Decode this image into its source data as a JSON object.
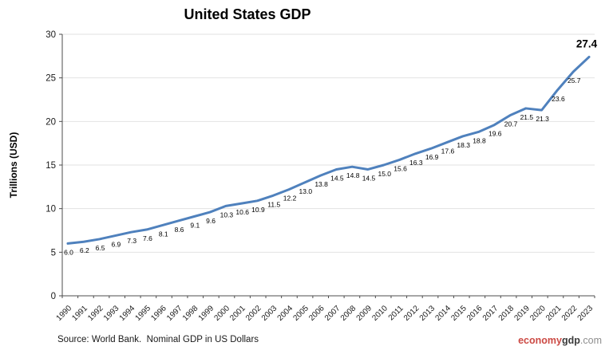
{
  "chart_data": {
    "type": "line",
    "title": "United States GDP",
    "xlabel": "",
    "ylabel": "Trillions (USD)",
    "x": [
      "1990",
      "1991",
      "1992",
      "1993",
      "1994",
      "1995",
      "1996",
      "1997",
      "1998",
      "1999",
      "2000",
      "2001",
      "2002",
      "2003",
      "2004",
      "2005",
      "2006",
      "2007",
      "2008",
      "2009",
      "2010",
      "2011",
      "2012",
      "2013",
      "2014",
      "2015",
      "2016",
      "2017",
      "2018",
      "2019",
      "2020",
      "2021",
      "2022",
      "2023"
    ],
    "values": [
      6.0,
      6.2,
      6.5,
      6.9,
      7.3,
      7.6,
      8.1,
      8.6,
      9.1,
      9.6,
      10.3,
      10.6,
      10.9,
      11.5,
      12.2,
      13.0,
      13.8,
      14.5,
      14.8,
      14.5,
      15.0,
      15.6,
      16.3,
      16.9,
      17.6,
      18.3,
      18.8,
      19.6,
      20.7,
      21.5,
      21.3,
      23.6,
      25.7,
      27.4
    ],
    "ylim": [
      0,
      30
    ],
    "yticks": [
      0,
      5,
      10,
      15,
      20,
      25,
      30
    ],
    "grid": true,
    "legend": "none",
    "series_name": "US GDP",
    "colors": {
      "line": "#4f81bd",
      "grid": "#e2e2e2",
      "axis": "#4d4d4d",
      "tick_text": "#1a1a1a",
      "data_label": "#000000"
    },
    "last_point_label": "27.4",
    "last_point_emphasized": true
  },
  "footer": {
    "source": "Source: World Bank.  Nominal GDP in US Dollars",
    "watermark": {
      "part1": "economy",
      "part2": "gdp",
      "part3": ".com",
      "part1_color": "#cc4a44",
      "part2_color": "#3a3a3a",
      "part3_color": "#8e8e8e"
    }
  }
}
